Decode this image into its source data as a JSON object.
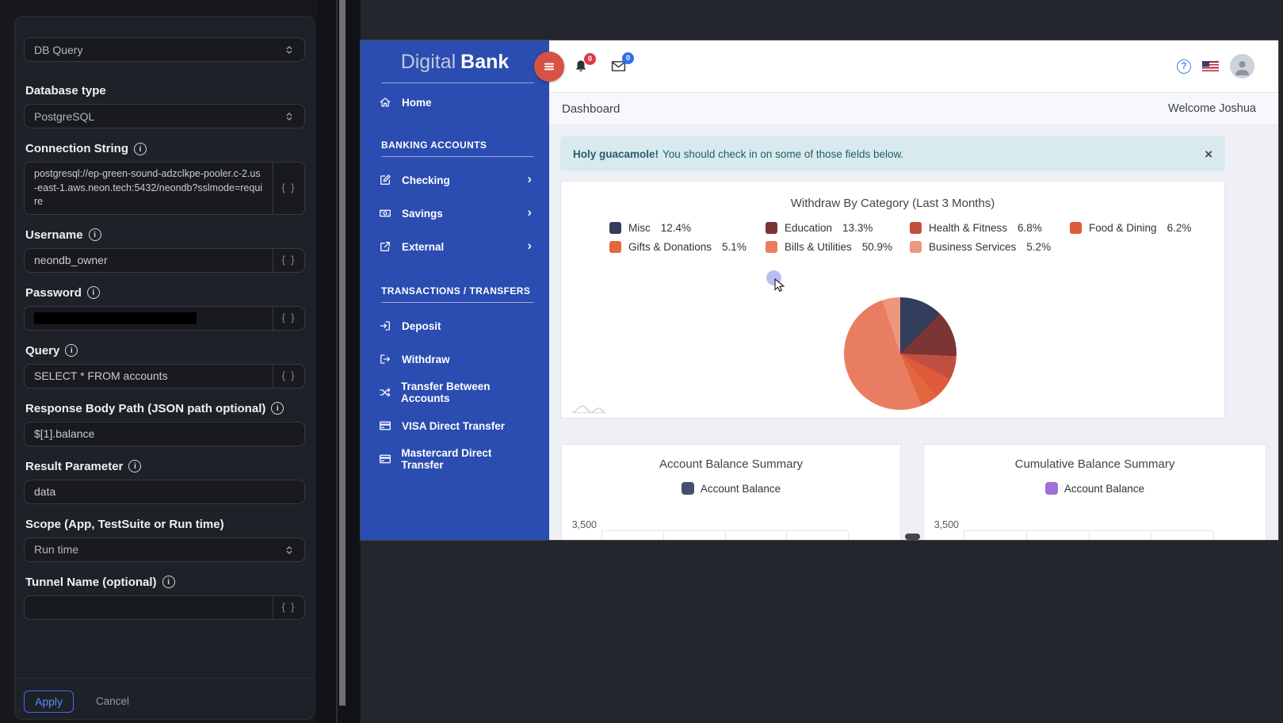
{
  "panel": {
    "action_type_value": "DB Query",
    "database_type_label": "Database type",
    "database_type_value": "PostgreSQL",
    "connection_string_label": "Connection String",
    "connection_string_value": "postgresql://ep-green-sound-adzclkpe-pooler.c-2.us-east-1.aws.neon.tech:5432/neondb?sslmode=require",
    "username_label": "Username",
    "username_value": "neondb_owner",
    "password_label": "Password",
    "query_label": "Query",
    "query_value": "SELECT * FROM accounts",
    "response_body_path_label": "Response Body Path (JSON path optional)",
    "response_body_path_value": "$[1].balance",
    "result_parameter_label": "Result Parameter",
    "result_parameter_value": "data",
    "scope_label": "Scope (App, TestSuite or Run time)",
    "scope_value": "Run time",
    "tunnel_name_label": "Tunnel Name (optional)",
    "tunnel_name_value": "",
    "brace_hint": "{ }",
    "apply_label": "Apply",
    "cancel_label": "Cancel"
  },
  "app": {
    "brand": {
      "word1": "Digital",
      "word2": "Bank"
    },
    "topbar": {
      "bell_badge": "0",
      "mail_badge": "0",
      "help_glyph": "?"
    },
    "sidebar": {
      "home_label": "Home",
      "sections": [
        {
          "title": "BANKING ACCOUNTS",
          "items": [
            {
              "label": "Checking",
              "icon": "pencil-square",
              "chevron": true
            },
            {
              "label": "Savings",
              "icon": "cash",
              "chevron": true
            },
            {
              "label": "External",
              "icon": "external-link",
              "chevron": true
            }
          ]
        },
        {
          "title": "TRANSACTIONS / TRANSFERS",
          "items": [
            {
              "label": "Deposit",
              "icon": "sign-in"
            },
            {
              "label": "Withdraw",
              "icon": "sign-out"
            },
            {
              "label": "Transfer Between Accounts",
              "icon": "shuffle"
            },
            {
              "label": "VISA Direct Transfer",
              "icon": "credit-card"
            },
            {
              "label": "Mastercard Direct Transfer",
              "icon": "credit-card"
            }
          ]
        }
      ]
    },
    "header": {
      "page_title": "Dashboard",
      "welcome": "Welcome Joshua"
    },
    "alert": {
      "lead": "Holy guacamole!",
      "message": "You should check in on some of those fields below.",
      "close": "×"
    }
  },
  "chart_data": [
    {
      "type": "pie",
      "title": "Withdraw By Category (Last 3 Months)",
      "categories": [
        "Misc",
        "Education",
        "Health & Fitness",
        "Food & Dining",
        "Gifts & Donations",
        "Bills & Utilities",
        "Business Services"
      ],
      "values": [
        12.4,
        13.3,
        6.8,
        6.2,
        5.1,
        50.9,
        5.2
      ],
      "unit": "%",
      "colors": [
        "#323e5c",
        "#7c3434",
        "#c14f41",
        "#df5a3d",
        "#e4663f",
        "#e97d61",
        "#ed977f"
      ],
      "legend_position": "top",
      "start_angle_deg": 0,
      "direction": "clockwise"
    },
    {
      "type": "bar",
      "title": "Account Balance Summary",
      "series": [
        {
          "name": "Account Balance",
          "values": []
        }
      ],
      "color": "#454e6b",
      "y_first_tick": "3,500",
      "visible_note": "chart area cut off below top gridline"
    },
    {
      "type": "bar",
      "title": "Cumulative Balance Summary",
      "series": [
        {
          "name": "Account Balance",
          "values": []
        }
      ],
      "color": "#9d71d9",
      "y_first_tick": "3,500",
      "visible_note": "chart area cut off below top gridline"
    }
  ]
}
